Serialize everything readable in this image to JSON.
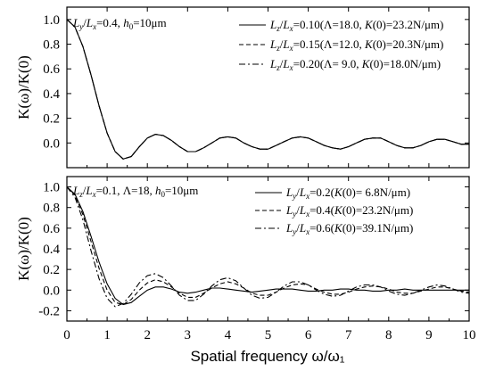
{
  "chart_data": [
    {
      "type": "line",
      "xlabel": "Spatial frequency  ω/ω₁",
      "ylabel": "K(ω)/K(0)",
      "xlim": [
        0,
        10
      ],
      "ylim": [
        -0.2,
        1.1
      ],
      "yticks": [
        "1.0",
        "0.8",
        "0.6",
        "0.4",
        "0.2",
        "0.0"
      ],
      "annotation": "Ly/Lx=0.4, h0=10μm",
      "legend_position": "top-right",
      "series": [
        {
          "name": "Lz/Lx=0.10(Λ=18.0, K(0)=23.2N/μm)",
          "dash": "solid",
          "x": [
            0,
            0.2,
            0.4,
            0.6,
            0.8,
            1.0,
            1.2,
            1.4,
            1.6,
            1.8,
            2.0,
            2.2,
            2.4,
            2.6,
            2.8,
            3.0,
            3.2,
            3.4,
            3.6,
            3.8,
            4.0,
            4.2,
            4.4,
            4.6,
            4.8,
            5.0,
            5.2,
            5.4,
            5.6,
            5.8,
            6.0,
            6.2,
            6.4,
            6.6,
            6.8,
            7.0,
            7.2,
            7.4,
            7.6,
            7.8,
            8.0,
            8.2,
            8.4,
            8.6,
            8.8,
            9.0,
            9.2,
            9.4,
            9.6,
            9.8,
            10.0
          ],
          "y": [
            1.0,
            0.94,
            0.78,
            0.55,
            0.3,
            0.08,
            -0.07,
            -0.13,
            -0.11,
            -0.03,
            0.04,
            0.07,
            0.06,
            0.02,
            -0.03,
            -0.07,
            -0.07,
            -0.04,
            0.0,
            0.04,
            0.05,
            0.04,
            0.0,
            -0.03,
            -0.05,
            -0.05,
            -0.02,
            0.01,
            0.04,
            0.05,
            0.04,
            0.01,
            -0.02,
            -0.04,
            -0.05,
            -0.03,
            0.0,
            0.03,
            0.04,
            0.04,
            0.01,
            -0.02,
            -0.04,
            -0.04,
            -0.02,
            0.01,
            0.03,
            0.03,
            0.01,
            -0.01,
            -0.01
          ]
        },
        {
          "name": "Lz/Lx=0.15(Λ=12.0, K(0)=20.3N/μm)",
          "dash": "dashed",
          "x": [
            0,
            0.2,
            0.4,
            0.6,
            0.8,
            1.0,
            1.2,
            1.4,
            1.6,
            1.8,
            2.0,
            2.2,
            2.4,
            2.6,
            2.8,
            3.0,
            3.2,
            3.4,
            3.6,
            3.8,
            4.0,
            4.2,
            4.4,
            4.6,
            4.8,
            5.0,
            5.2,
            5.4,
            5.6,
            5.8,
            6.0,
            6.2,
            6.4,
            6.6,
            6.8,
            7.0,
            7.2,
            7.4,
            7.6,
            7.8,
            8.0,
            8.2,
            8.4,
            8.6,
            8.8,
            9.0,
            9.2,
            9.4,
            9.6,
            9.8,
            10.0
          ],
          "y": [
            1.0,
            0.94,
            0.78,
            0.55,
            0.3,
            0.08,
            -0.07,
            -0.13,
            -0.11,
            -0.03,
            0.04,
            0.07,
            0.06,
            0.02,
            -0.03,
            -0.07,
            -0.07,
            -0.04,
            0.0,
            0.04,
            0.05,
            0.04,
            0.0,
            -0.03,
            -0.05,
            -0.05,
            -0.02,
            0.01,
            0.04,
            0.05,
            0.04,
            0.01,
            -0.02,
            -0.04,
            -0.05,
            -0.03,
            0.0,
            0.03,
            0.04,
            0.04,
            0.01,
            -0.02,
            -0.04,
            -0.04,
            -0.02,
            0.01,
            0.03,
            0.03,
            0.01,
            -0.01,
            -0.01
          ]
        },
        {
          "name": "Lz/Lx=0.20(Λ= 9.0, K(0)=18.0N/μm)",
          "dash": "dashdot",
          "x": [
            0,
            0.2,
            0.4,
            0.6,
            0.8,
            1.0,
            1.2,
            1.4,
            1.6,
            1.8,
            2.0,
            2.2,
            2.4,
            2.6,
            2.8,
            3.0,
            3.2,
            3.4,
            3.6,
            3.8,
            4.0,
            4.2,
            4.4,
            4.6,
            4.8,
            5.0,
            5.2,
            5.4,
            5.6,
            5.8,
            6.0,
            6.2,
            6.4,
            6.6,
            6.8,
            7.0,
            7.2,
            7.4,
            7.6,
            7.8,
            8.0,
            8.2,
            8.4,
            8.6,
            8.8,
            9.0,
            9.2,
            9.4,
            9.6,
            9.8,
            10.0
          ],
          "y": [
            1.0,
            0.94,
            0.78,
            0.55,
            0.3,
            0.08,
            -0.07,
            -0.13,
            -0.11,
            -0.03,
            0.04,
            0.07,
            0.06,
            0.02,
            -0.03,
            -0.07,
            -0.07,
            -0.04,
            0.0,
            0.04,
            0.05,
            0.04,
            0.0,
            -0.03,
            -0.05,
            -0.05,
            -0.02,
            0.01,
            0.04,
            0.05,
            0.04,
            0.01,
            -0.02,
            -0.04,
            -0.05,
            -0.03,
            0.0,
            0.03,
            0.04,
            0.04,
            0.01,
            -0.02,
            -0.04,
            -0.04,
            -0.02,
            0.01,
            0.03,
            0.03,
            0.01,
            -0.01,
            -0.01
          ]
        }
      ]
    },
    {
      "type": "line",
      "xlabel": "Spatial frequency  ω/ω₁",
      "ylabel": "K(ω)/K(0)",
      "xlim": [
        0,
        10
      ],
      "ylim": [
        -0.3,
        1.1
      ],
      "xticks": [
        "0",
        "1",
        "2",
        "3",
        "4",
        "5",
        "6",
        "7",
        "8",
        "9",
        "10"
      ],
      "yticks": [
        "1.0",
        "0.8",
        "0.6",
        "0.4",
        "0.2",
        "0.0",
        "-0.2"
      ],
      "annotation": "Lz/Lx=0.1, Λ=18, h0=10μm",
      "legend_position": "top-right",
      "series": [
        {
          "name": "Ly/Lx=0.2(K(0)= 6.8N/μm)",
          "dash": "solid",
          "x": [
            0,
            0.2,
            0.4,
            0.6,
            0.8,
            1.0,
            1.2,
            1.4,
            1.6,
            1.8,
            2.0,
            2.2,
            2.4,
            2.6,
            2.8,
            3.0,
            3.2,
            3.4,
            3.6,
            3.8,
            4.0,
            4.2,
            4.4,
            4.6,
            4.8,
            5.0,
            5.2,
            5.4,
            5.6,
            5.8,
            6.0,
            6.2,
            6.4,
            6.6,
            6.8,
            7.0,
            7.2,
            7.4,
            7.6,
            7.8,
            8.0,
            8.2,
            8.4,
            8.6,
            8.8,
            9.0,
            9.2,
            9.4,
            9.6,
            9.8,
            10.0
          ],
          "y": [
            1.0,
            0.93,
            0.76,
            0.52,
            0.27,
            0.06,
            -0.08,
            -0.14,
            -0.12,
            -0.06,
            0.0,
            0.03,
            0.03,
            0.01,
            -0.02,
            -0.03,
            -0.02,
            0.0,
            0.02,
            0.02,
            0.01,
            0.0,
            -0.01,
            -0.02,
            -0.01,
            0.0,
            0.01,
            0.01,
            0.01,
            0.0,
            -0.01,
            -0.01,
            0.0,
            0.0,
            0.01,
            0.01,
            0.0,
            0.0,
            -0.01,
            -0.01,
            0.0,
            0.0,
            0.01,
            0.0,
            0.0,
            0.0,
            0.0,
            0.0,
            0.0,
            0.0,
            0.0
          ]
        },
        {
          "name": "Ly/Lx=0.4(K(0)=23.2N/μm)",
          "dash": "dashed",
          "x": [
            0,
            0.2,
            0.4,
            0.6,
            0.8,
            1.0,
            1.2,
            1.4,
            1.6,
            1.8,
            2.0,
            2.2,
            2.4,
            2.6,
            2.8,
            3.0,
            3.2,
            3.4,
            3.6,
            3.8,
            4.0,
            4.2,
            4.4,
            4.6,
            4.8,
            5.0,
            5.2,
            5.4,
            5.6,
            5.8,
            6.0,
            6.2,
            6.4,
            6.6,
            6.8,
            7.0,
            7.2,
            7.4,
            7.6,
            7.8,
            8.0,
            8.2,
            8.4,
            8.6,
            8.8,
            9.0,
            9.2,
            9.4,
            9.6,
            9.8,
            10.0
          ],
          "y": [
            1.0,
            0.92,
            0.73,
            0.47,
            0.21,
            0.0,
            -0.12,
            -0.14,
            -0.09,
            0.0,
            0.07,
            0.1,
            0.08,
            0.03,
            -0.03,
            -0.07,
            -0.07,
            -0.03,
            0.02,
            0.06,
            0.08,
            0.06,
            0.02,
            -0.03,
            -0.05,
            -0.05,
            -0.02,
            0.02,
            0.05,
            0.06,
            0.05,
            0.01,
            -0.02,
            -0.04,
            -0.04,
            -0.02,
            0.01,
            0.03,
            0.04,
            0.03,
            0.01,
            -0.02,
            -0.03,
            -0.03,
            -0.01,
            0.01,
            0.03,
            0.03,
            0.01,
            -0.01,
            -0.02
          ]
        },
        {
          "name": "Ly/Lx=0.6(K(0)=39.1N/μm)",
          "dash": "dashdot",
          "x": [
            0,
            0.2,
            0.4,
            0.6,
            0.8,
            1.0,
            1.2,
            1.4,
            1.6,
            1.8,
            2.0,
            2.2,
            2.4,
            2.6,
            2.8,
            3.0,
            3.2,
            3.4,
            3.6,
            3.8,
            4.0,
            4.2,
            4.4,
            4.6,
            4.8,
            5.0,
            5.2,
            5.4,
            5.6,
            5.8,
            6.0,
            6.2,
            6.4,
            6.6,
            6.8,
            7.0,
            7.2,
            7.4,
            7.6,
            7.8,
            8.0,
            8.2,
            8.4,
            8.6,
            8.8,
            9.0,
            9.2,
            9.4,
            9.6,
            9.8,
            10.0
          ],
          "y": [
            1.0,
            0.9,
            0.68,
            0.38,
            0.11,
            -0.08,
            -0.16,
            -0.13,
            -0.04,
            0.07,
            0.14,
            0.16,
            0.12,
            0.04,
            -0.05,
            -0.1,
            -0.1,
            -0.04,
            0.04,
            0.1,
            0.12,
            0.09,
            0.02,
            -0.05,
            -0.08,
            -0.07,
            -0.02,
            0.04,
            0.08,
            0.08,
            0.05,
            0.0,
            -0.04,
            -0.06,
            -0.05,
            -0.01,
            0.03,
            0.05,
            0.05,
            0.03,
            -0.01,
            -0.04,
            -0.05,
            -0.03,
            0.0,
            0.03,
            0.05,
            0.04,
            0.01,
            -0.02,
            -0.03
          ]
        }
      ]
    }
  ]
}
